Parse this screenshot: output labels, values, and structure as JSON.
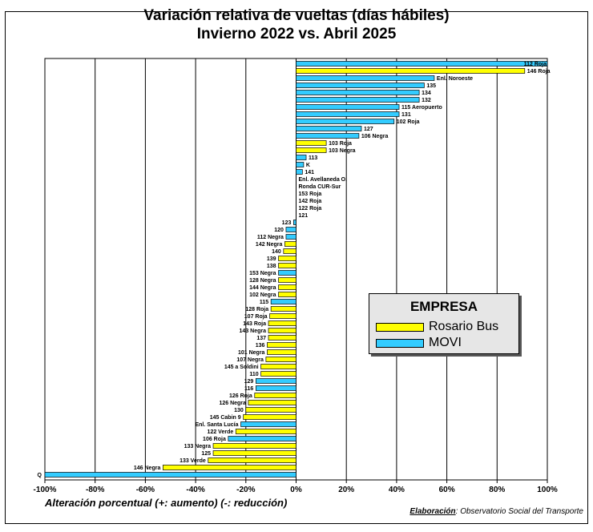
{
  "title_line1": "Variación relativa de vueltas (días hábiles)",
  "title_line2": "Invierno 2022 vs. Abril 2025",
  "legend": {
    "title": "EMPRESA",
    "items": [
      {
        "name": "Rosario Bus",
        "color": "#ffff00"
      },
      {
        "name": "MOVI",
        "color": "#33ccff"
      }
    ]
  },
  "xlabel": "Alteración porcentual (+: aumento) (-: reducción)",
  "credit": {
    "lead": "Elaboración",
    "text": ": Observatorio Social del Transporte"
  },
  "chart_data": {
    "type": "bar",
    "orientation": "horizontal",
    "xlim": [
      -100,
      100
    ],
    "xticks": [
      -100,
      -80,
      -60,
      -40,
      -20,
      0,
      20,
      40,
      60,
      80,
      100
    ],
    "xtick_format": "percent",
    "grid": true,
    "legend_position": "right",
    "bars": [
      {
        "label": "112 Roja",
        "value": 100,
        "company": "MOVI"
      },
      {
        "label": "146 Roja",
        "value": 91,
        "company": "Rosario Bus"
      },
      {
        "label": "Enl. Noroeste",
        "value": 55,
        "company": "MOVI"
      },
      {
        "label": "135",
        "value": 51,
        "company": "MOVI"
      },
      {
        "label": "134",
        "value": 49,
        "company": "MOVI"
      },
      {
        "label": "132",
        "value": 49,
        "company": "MOVI"
      },
      {
        "label": "115 Aeropuerto",
        "value": 41,
        "company": "MOVI"
      },
      {
        "label": "131",
        "value": 41,
        "company": "MOVI"
      },
      {
        "label": "102 Roja",
        "value": 39,
        "company": "MOVI"
      },
      {
        "label": "127",
        "value": 26,
        "company": "MOVI"
      },
      {
        "label": "106 Negra",
        "value": 25,
        "company": "MOVI"
      },
      {
        "label": "103 Roja",
        "value": 12,
        "company": "Rosario Bus"
      },
      {
        "label": "103 Negra",
        "value": 12,
        "company": "Rosario Bus"
      },
      {
        "label": "113",
        "value": 4,
        "company": "MOVI"
      },
      {
        "label": "K",
        "value": 3,
        "company": "MOVI"
      },
      {
        "label": "141",
        "value": 2.5,
        "company": "MOVI"
      },
      {
        "label": "Enl. Avellaneda O.",
        "value": 0,
        "company": "MOVI"
      },
      {
        "label": "Ronda CUR-Sur",
        "value": 0,
        "company": "MOVI"
      },
      {
        "label": "153 Roja",
        "value": 0,
        "company": "MOVI"
      },
      {
        "label": "142 Roja",
        "value": 0,
        "company": "MOVI"
      },
      {
        "label": "122 Roja",
        "value": 0,
        "company": "MOVI"
      },
      {
        "label": "121",
        "value": 0,
        "company": "MOVI"
      },
      {
        "label": "123",
        "value": -1,
        "company": "MOVI"
      },
      {
        "label": "120",
        "value": -4,
        "company": "MOVI"
      },
      {
        "label": "112 Negra",
        "value": -4,
        "company": "MOVI"
      },
      {
        "label": "142 Negra",
        "value": -4.5,
        "company": "Rosario Bus"
      },
      {
        "label": "140",
        "value": -5,
        "company": "Rosario Bus"
      },
      {
        "label": "139",
        "value": -7,
        "company": "Rosario Bus"
      },
      {
        "label": "138",
        "value": -7,
        "company": "Rosario Bus"
      },
      {
        "label": "153 Negra",
        "value": -7,
        "company": "MOVI"
      },
      {
        "label": "128 Negra",
        "value": -7,
        "company": "Rosario Bus"
      },
      {
        "label": "144 Negra",
        "value": -7,
        "company": "Rosario Bus"
      },
      {
        "label": "102 Negra",
        "value": -7,
        "company": "Rosario Bus"
      },
      {
        "label": "115",
        "value": -10,
        "company": "MOVI"
      },
      {
        "label": "128 Roja",
        "value": -10,
        "company": "Rosario Bus"
      },
      {
        "label": "107 Roja",
        "value": -10.5,
        "company": "Rosario Bus"
      },
      {
        "label": "143 Roja",
        "value": -11,
        "company": "Rosario Bus"
      },
      {
        "label": "143 Negra",
        "value": -11,
        "company": "Rosario Bus"
      },
      {
        "label": "137",
        "value": -11,
        "company": "Rosario Bus"
      },
      {
        "label": "136",
        "value": -11.5,
        "company": "Rosario Bus"
      },
      {
        "label": "101 Negra",
        "value": -11.5,
        "company": "Rosario Bus"
      },
      {
        "label": "107 Negra",
        "value": -12,
        "company": "Rosario Bus"
      },
      {
        "label": "145 a Soldini",
        "value": -14,
        "company": "Rosario Bus"
      },
      {
        "label": "110",
        "value": -14,
        "company": "Rosario Bus"
      },
      {
        "label": "129",
        "value": -16,
        "company": "MOVI"
      },
      {
        "label": "116",
        "value": -16,
        "company": "MOVI"
      },
      {
        "label": "126 Roja",
        "value": -16.5,
        "company": "Rosario Bus"
      },
      {
        "label": "126 Negra",
        "value": -19,
        "company": "Rosario Bus"
      },
      {
        "label": "130",
        "value": -20,
        "company": "Rosario Bus"
      },
      {
        "label": "145 Cabin 9",
        "value": -21,
        "company": "Rosario Bus"
      },
      {
        "label": "Enl. Santa Lucía",
        "value": -22,
        "company": "MOVI"
      },
      {
        "label": "122 Verde",
        "value": -24,
        "company": "Rosario Bus"
      },
      {
        "label": "106 Roja",
        "value": -27,
        "company": "MOVI"
      },
      {
        "label": "133 Negra",
        "value": -33,
        "company": "Rosario Bus"
      },
      {
        "label": "125",
        "value": -33,
        "company": "Rosario Bus"
      },
      {
        "label": "133 Verde",
        "value": -35,
        "company": "Rosario Bus"
      },
      {
        "label": "146 Negra",
        "value": -53,
        "company": "Rosario Bus"
      },
      {
        "label": "Q",
        "value": -100,
        "company": "MOVI"
      }
    ]
  }
}
